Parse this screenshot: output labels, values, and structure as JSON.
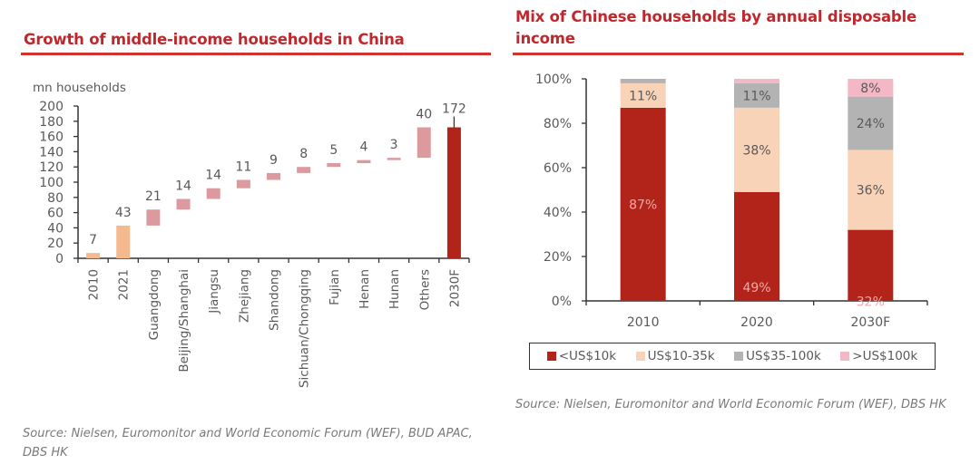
{
  "left_panel": {
    "title": "Growth of middle-income households in China",
    "source": "Source: Nielsen, Euromonitor and World Economic Forum (WEF), BUD APAC, DBS HK"
  },
  "right_panel": {
    "title_line1": "Mix of Chinese households by annual disposable",
    "title_line2": "income",
    "source": "Source: Nielsen, Euromonitor and World Economic Forum (WEF), DBS HK"
  },
  "chart_data": [
    {
      "type": "bar",
      "subtype": "waterfall",
      "title": "Growth of middle-income households in China",
      "ylabel": "mn households",
      "xlabel": "",
      "ylim": [
        0,
        200
      ],
      "yticks": [
        0,
        20,
        40,
        60,
        80,
        100,
        120,
        140,
        160,
        180,
        200
      ],
      "grid": false,
      "categories": [
        "2010",
        "2021",
        "Guangdong",
        "Beijing/Shanghai",
        "Jiangsu",
        "Zhejiang",
        "Shandong",
        "Sichuan/Chongqing",
        "Fujian",
        "Henan",
        "Hunan",
        "Others",
        "2030F"
      ],
      "values": [
        7,
        43,
        21,
        14,
        14,
        11,
        9,
        8,
        5,
        4,
        3,
        40,
        172
      ],
      "kinds": [
        "total",
        "total",
        "increment",
        "increment",
        "increment",
        "increment",
        "increment",
        "increment",
        "increment",
        "increment",
        "increment",
        "increment",
        "total"
      ],
      "data_labels": [
        "7",
        "43",
        "21",
        "14",
        "14",
        "11",
        "9",
        "8",
        "5",
        "4",
        "3",
        "40",
        "172"
      ],
      "colors": {
        "historic": "#f5b98e",
        "increment": "#dc9a9e",
        "forecast": "#b22319"
      }
    },
    {
      "type": "bar",
      "subtype": "stacked-100",
      "title": "Mix of Chinese households by annual disposable income",
      "xlabel": "",
      "ylabel": "",
      "ylim": [
        0,
        100
      ],
      "yticks": [
        "0%",
        "20%",
        "40%",
        "60%",
        "80%",
        "100%"
      ],
      "grid": false,
      "legend_position": "bottom",
      "categories": [
        "2010",
        "2020",
        "2030F"
      ],
      "series": [
        {
          "name": "<US$10k",
          "color": "#b22319",
          "values": [
            87,
            49,
            32
          ],
          "labels": [
            "87%",
            "49%",
            "32%"
          ],
          "label_color": "#f0a9a6"
        },
        {
          "name": "US$10-35k",
          "color": "#f9d3b8",
          "values": [
            11,
            38,
            36
          ],
          "labels": [
            "11%",
            "38%",
            "36%"
          ],
          "label_color": "#595959"
        },
        {
          "name": "US$35-100k",
          "color": "#b3b3b3",
          "values": [
            2,
            11,
            24
          ],
          "labels": [
            "",
            "11%",
            "24%"
          ],
          "label_color": "#595959"
        },
        {
          "name": ">US$100k",
          "color": "#f3b7c6",
          "values": [
            0,
            2,
            8
          ],
          "labels": [
            "",
            "",
            "8%"
          ],
          "label_color": "#595959"
        }
      ]
    }
  ]
}
